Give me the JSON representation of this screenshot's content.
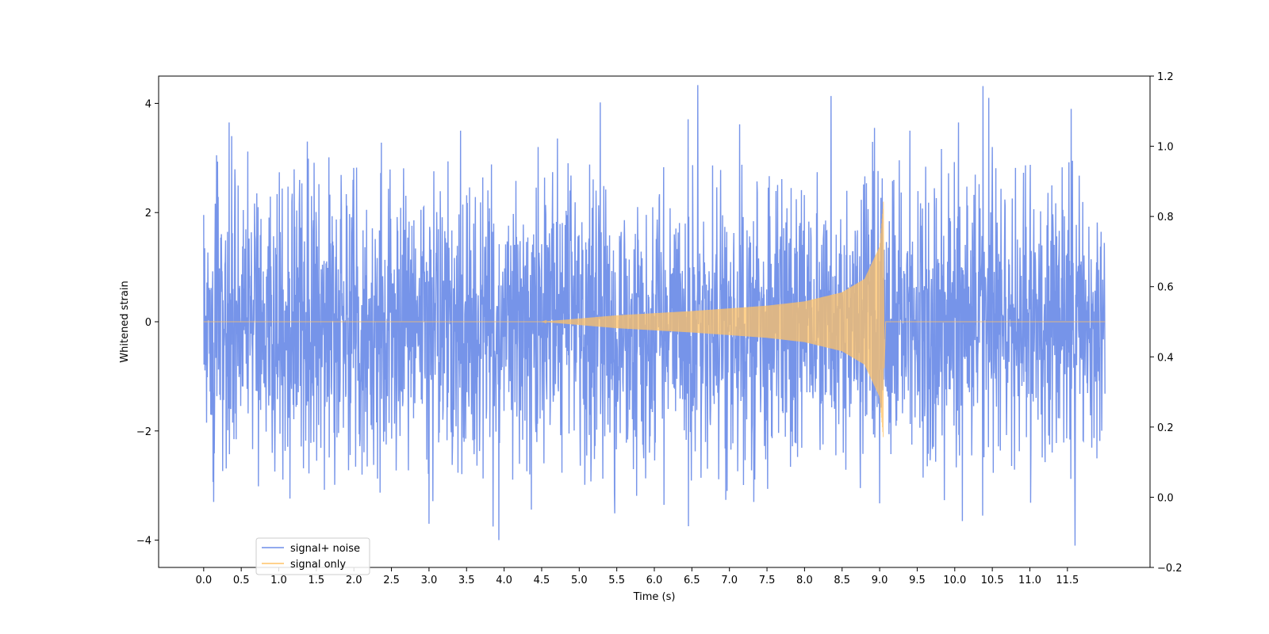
{
  "chart_data": {
    "type": "line",
    "title": "",
    "xlabel": "Time (s)",
    "ylabel": "Whitened strain",
    "xlim": [
      -0.6,
      12.6
    ],
    "ylim": [
      -4.5,
      4.5
    ],
    "y2lim": [
      -0.2,
      1.2
    ],
    "x_ticks": [
      0.0,
      0.5,
      1.0,
      1.5,
      2.0,
      2.5,
      3.0,
      3.5,
      4.0,
      4.5,
      5.0,
      5.5,
      6.0,
      6.5,
      7.0,
      7.5,
      8.0,
      8.5,
      9.0,
      9.5,
      10.0,
      10.5,
      11.0,
      11.5
    ],
    "x_tick_labels": [
      "0.0",
      "0.5",
      "1.0",
      "1.5",
      "2.0",
      "2.5",
      "3.0",
      "3.5",
      "4.0",
      "4.5",
      "5.0",
      "5.5",
      "6.0",
      "6.5",
      "7.0",
      "7.5",
      "8.0",
      "8.5",
      "9.0",
      "9.5",
      "10.0",
      "10.5",
      "11.0",
      "11.5"
    ],
    "y_ticks": [
      -4,
      -2,
      0,
      2,
      4
    ],
    "y_tick_labels": [
      "−4",
      "−2",
      "0",
      "2",
      "4"
    ],
    "y2_ticks": [
      -0.2,
      0.0,
      0.2,
      0.4,
      0.6,
      0.8,
      1.0,
      1.2
    ],
    "y2_tick_labels": [
      "−0.2",
      "0.0",
      "0.2",
      "0.4",
      "0.6",
      "0.8",
      "1.0",
      "1.2"
    ],
    "grid": false,
    "legend_position": "lower-left",
    "series": [
      {
        "name": "signal+ noise",
        "color": "#6f8ee8",
        "x_range": [
          0.0,
          12.0
        ],
        "noise_envelope": [
          -1.6,
          1.6
        ],
        "peaks": [
          {
            "x": 0.17,
            "y": 3.05
          },
          {
            "x": 0.37,
            "y": 3.4
          },
          {
            "x": 1.38,
            "y": 3.3
          },
          {
            "x": 3.42,
            "y": 3.5
          },
          {
            "x": 4.45,
            "y": 3.2
          },
          {
            "x": 6.45,
            "y": 3.65
          },
          {
            "x": 8.35,
            "y": 3.95
          },
          {
            "x": 9.4,
            "y": 3.5
          },
          {
            "x": 10.05,
            "y": 3.65
          },
          {
            "x": 10.45,
            "y": 4.1
          },
          {
            "x": 11.55,
            "y": 3.9
          },
          {
            "x": 0.13,
            "y": -3.3
          },
          {
            "x": 3.0,
            "y": -3.7
          },
          {
            "x": 3.85,
            "y": -3.75
          },
          {
            "x": 3.93,
            "y": -4.0
          },
          {
            "x": 6.45,
            "y": -3.8
          },
          {
            "x": 9.0,
            "y": -3.45
          },
          {
            "x": 10.1,
            "y": -3.65
          },
          {
            "x": 11.6,
            "y": -4.1
          }
        ]
      },
      {
        "name": "signal only",
        "color": "#ffc266",
        "x_range": [
          0.0,
          12.0
        ],
        "chirp_start": 4.5,
        "merger_time": 9.05,
        "peak_amplitude": 2.2,
        "envelope": [
          {
            "x": 4.5,
            "amp": 0.0
          },
          {
            "x": 5.5,
            "amp": 0.12
          },
          {
            "x": 6.5,
            "amp": 0.2
          },
          {
            "x": 7.5,
            "amp": 0.3
          },
          {
            "x": 8.0,
            "amp": 0.38
          },
          {
            "x": 8.5,
            "amp": 0.55
          },
          {
            "x": 8.8,
            "amp": 0.8
          },
          {
            "x": 9.0,
            "amp": 1.4
          },
          {
            "x": 9.05,
            "amp": 2.2
          }
        ]
      }
    ]
  }
}
